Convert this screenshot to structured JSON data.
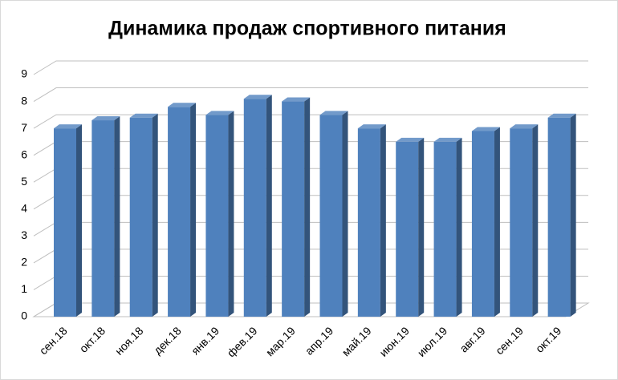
{
  "chart_data": {
    "type": "bar3d",
    "title": "Динамика продаж спортивного питания",
    "categories": [
      "сен.18",
      "окт.18",
      "ноя.18",
      "дек.18",
      "янв.19",
      "фев.19",
      "мар.19",
      "апр.19",
      "май.19",
      "июн.19",
      "июл.19",
      "авг.19",
      "сен.19",
      "окт.19"
    ],
    "values": [
      7.0,
      7.3,
      7.4,
      7.8,
      7.5,
      8.1,
      8.0,
      7.5,
      7.0,
      6.5,
      6.5,
      6.9,
      7.0,
      7.4
    ],
    "color": "#4f81bd",
    "ylim": [
      0,
      9
    ],
    "yticks": [
      0,
      1,
      2,
      3,
      4,
      5,
      6,
      7,
      8,
      9
    ],
    "grid": true
  }
}
